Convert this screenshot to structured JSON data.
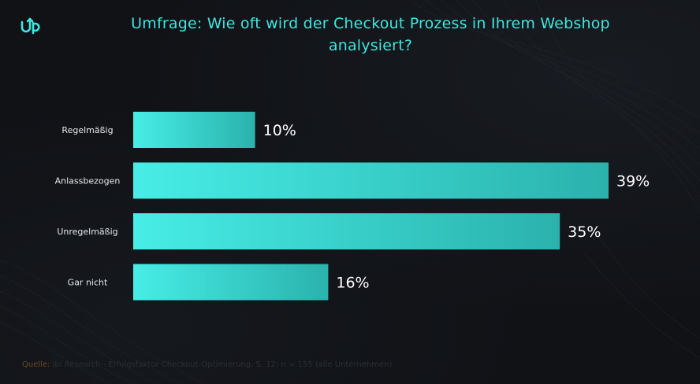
{
  "title": "Umfrage: Wie oft wird der Checkout Prozess in Ihrem Webshop analysiert?",
  "logo_icon": "up-arrow-logo-icon",
  "colors": {
    "title": "#3ee6de",
    "bar_start": "#47ede6",
    "bar_end": "#2bb2ad",
    "label": "#e6e8ea",
    "value": "#ffffff",
    "background": "#101216"
  },
  "source": {
    "key": "Quelle:",
    "text": "ibi Research - Erfolgsfaktor Checkout-Optimierung, S. 12; n = 155 (alle Unternehmen)"
  },
  "chart_data": {
    "type": "bar",
    "orientation": "horizontal",
    "categories": [
      "Regelmäßig",
      "Anlassbezogen",
      "Unregelmäßig",
      "Gar nicht"
    ],
    "values": [
      10,
      39,
      35,
      16
    ],
    "value_labels": [
      "10%",
      "39%",
      "35%",
      "16%"
    ],
    "xlim": [
      0,
      39
    ],
    "grid": false,
    "legend": "none"
  }
}
